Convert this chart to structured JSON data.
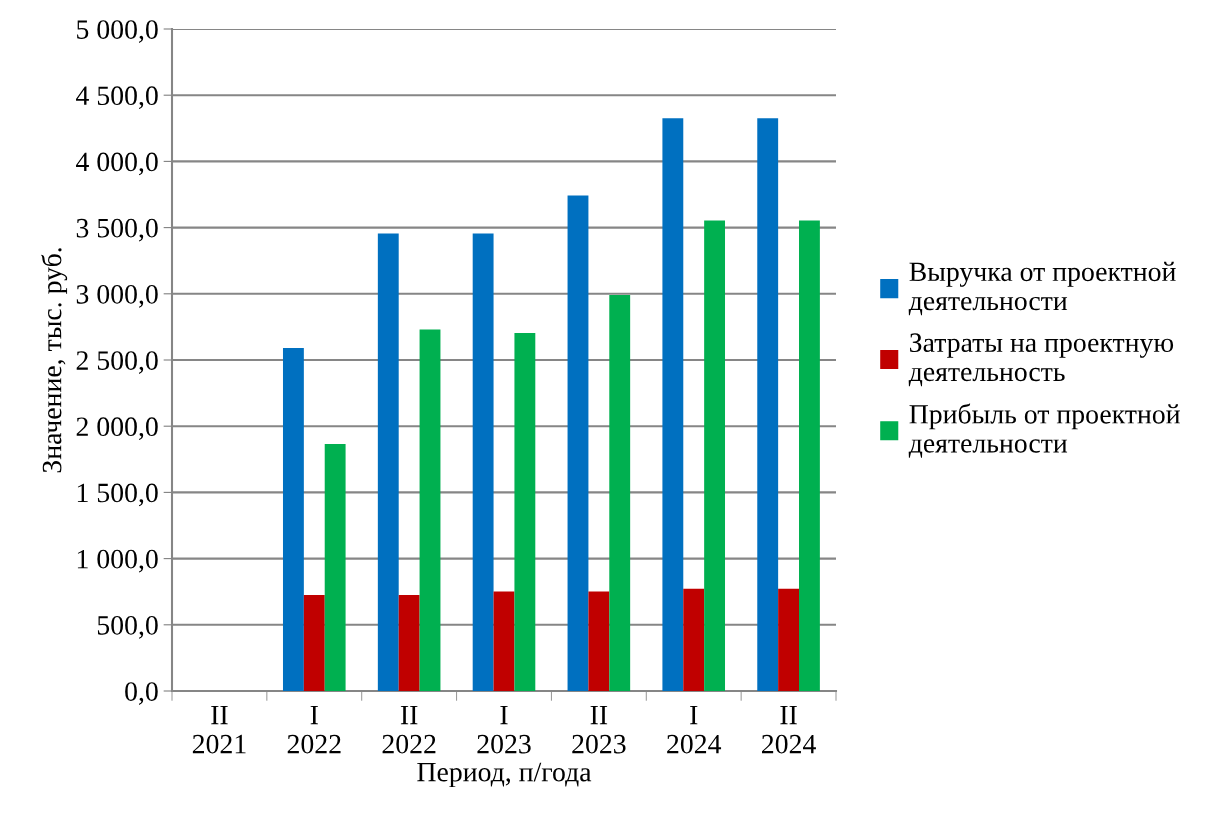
{
  "chart_data": {
    "type": "bar",
    "xlabel": "Период, п/года",
    "ylabel": "Значение, тыс. руб.",
    "categories": [
      "II\n2021",
      "I\n2022",
      "II\n2022",
      "I\n2023",
      "II\n2023",
      "I\n2024",
      "II\n2024"
    ],
    "series": [
      {
        "name": "Выручка от проектной деятельности",
        "color": "#0070c0",
        "values": [
          null,
          2590,
          3455,
          3455,
          3742,
          4326,
          4326
        ]
      },
      {
        "name": "Затраты на проектную деятельность",
        "color": "#c00000",
        "values": [
          null,
          725,
          725,
          751,
          751,
          773,
          773
        ]
      },
      {
        "name": "Прибыль от проектной деятельности",
        "color": "#00b050",
        "values": [
          null,
          1865,
          2730,
          2704,
          2991,
          3553,
          3553
        ]
      }
    ],
    "ylim": [
      0,
      5000
    ],
    "yticks": [
      {
        "value": 0,
        "label": "0,0"
      },
      {
        "value": 500,
        "label": "500,0"
      },
      {
        "value": 1000,
        "label": "1 000,0"
      },
      {
        "value": 1500,
        "label": "1 500,0"
      },
      {
        "value": 2000,
        "label": "2 000,0"
      },
      {
        "value": 2500,
        "label": "2 500,0"
      },
      {
        "value": 3000,
        "label": "3 000,0"
      },
      {
        "value": 3500,
        "label": "3 500,0"
      },
      {
        "value": 4000,
        "label": "4 000,0"
      },
      {
        "value": 4500,
        "label": "4 500,0"
      },
      {
        "value": 5000,
        "label": "5 000,0"
      }
    ],
    "grid": "y",
    "legend": "right"
  }
}
